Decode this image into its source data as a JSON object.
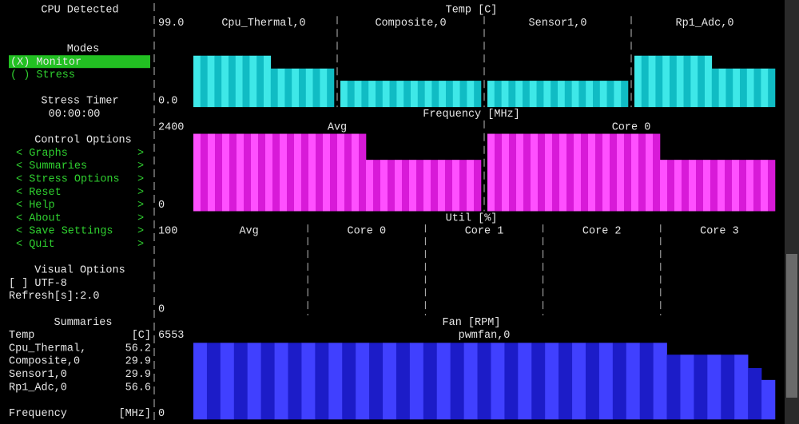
{
  "sidebar": {
    "cpu": "CPU Detected",
    "modes_title": "Modes",
    "modes": [
      "(X) Monitor",
      "( ) Stress"
    ],
    "timer_title": "Stress Timer",
    "timer": "00:00:00",
    "control_title": "Control Options",
    "controls": [
      {
        "text": "< Graphs",
        "arrow": ">"
      },
      {
        "text": "< Summaries",
        "arrow": ">"
      },
      {
        "text": "< Stress Options",
        "arrow": ">"
      },
      {
        "text": "< Reset",
        "arrow": ">"
      },
      {
        "text": "< Help",
        "arrow": ">"
      },
      {
        "text": "< About",
        "arrow": ">"
      },
      {
        "text": "< Save Settings",
        "arrow": ">"
      },
      {
        "text": "< Quit",
        "arrow": ">"
      }
    ],
    "visual_title": "Visual Options",
    "visual": [
      "[ ] UTF-8",
      "Refresh[s]:2.0"
    ],
    "summaries_title": "Summaries",
    "summaries": [
      {
        "name": "Temp",
        "value": "[C]"
      },
      {
        "name": "Cpu_Thermal,",
        "value": "56.2"
      },
      {
        "name": "Composite,0",
        "value": "29.9"
      },
      {
        "name": "Sensor1,0",
        "value": "29.9"
      },
      {
        "name": "Rp1_Adc,0",
        "value": "56.6"
      }
    ],
    "footer": {
      "name": "Frequency",
      "value": "[MHz]"
    }
  },
  "graphs": [
    {
      "title": "Temp [C]",
      "ylim": [
        0,
        99
      ],
      "yticks": [
        {
          "value": 99,
          "label": "99.0"
        },
        {
          "value": 0,
          "label": "0.0"
        }
      ],
      "colors": [
        "#3ee8e8",
        "#10bcc4"
      ],
      "panels": [
        {
          "name": "Cpu_Thermal,0",
          "values": [
            56,
            56,
            56,
            56,
            56,
            56,
            56,
            56,
            56,
            56,
            56,
            42,
            42,
            42,
            42,
            42,
            42,
            42,
            42,
            42
          ]
        },
        {
          "name": "Composite,0",
          "values": [
            28.7,
            28.7,
            28.7,
            28.7,
            28.7,
            28.7,
            28.7,
            28.7,
            28.7,
            28.7,
            28.7,
            28.7,
            28.7,
            28.7,
            28.7,
            28.7,
            28.7,
            28.7,
            28.7,
            28.7
          ]
        },
        {
          "name": "Sensor1,0",
          "values": [
            28.7,
            28.7,
            28.7,
            28.7,
            28.7,
            28.7,
            28.7,
            28.7,
            28.7,
            28.7,
            28.7,
            28.7,
            28.7,
            28.7,
            28.7,
            28.7,
            28.7,
            28.7,
            28.7,
            28.7
          ]
        },
        {
          "name": "Rp1_Adc,0",
          "values": [
            56,
            56,
            56,
            56,
            56,
            56,
            56,
            56,
            56,
            56,
            56,
            42,
            42,
            42,
            42,
            42,
            42,
            42,
            42,
            42
          ]
        }
      ]
    },
    {
      "title": "Frequency [MHz]",
      "ylim": [
        0,
        2400
      ],
      "yticks": [
        2400,
        0
      ],
      "colors": [
        "#ff50ff",
        "#d81ad8"
      ],
      "panels": [
        {
          "name": "Avg",
          "values": [
            2045,
            2045,
            2045,
            2045,
            2045,
            2045,
            2045,
            2045,
            2045,
            2045,
            2045,
            2045,
            2045,
            2045,
            2045,
            2045,
            2045,
            2045,
            2045,
            2045,
            2045,
            2045,
            2045,
            2045,
            1357,
            1357,
            1357,
            1357,
            1357,
            1357,
            1357,
            1357,
            1357,
            1357,
            1357,
            1357,
            1357,
            1357,
            1357,
            1357
          ]
        },
        {
          "name": "Core 0",
          "values": [
            2045,
            2045,
            2045,
            2045,
            2045,
            2045,
            2045,
            2045,
            2045,
            2045,
            2045,
            2045,
            2045,
            2045,
            2045,
            2045,
            2045,
            2045,
            2045,
            2045,
            2045,
            2045,
            2045,
            2045,
            1357,
            1357,
            1357,
            1357,
            1357,
            1357,
            1357,
            1357,
            1357,
            1357,
            1357,
            1357,
            1357,
            1357,
            1357,
            1357
          ]
        }
      ]
    },
    {
      "title": "Util [%]",
      "ylim": [
        0,
        100
      ],
      "yticks": [
        100,
        0
      ],
      "colors": [
        "#ffffff",
        "#cccccc"
      ],
      "panels": [
        {
          "name": "Avg",
          "values": []
        },
        {
          "name": "Core 0",
          "values": []
        },
        {
          "name": "Core 1",
          "values": []
        },
        {
          "name": "Core 2",
          "values": []
        },
        {
          "name": "Core 3",
          "values": []
        }
      ]
    },
    {
      "title": "Fan [RPM]",
      "ylim": [
        0,
        6553
      ],
      "yticks": [
        6553,
        0
      ],
      "colors": [
        "#4040ff",
        "#1c1cc8"
      ],
      "panels": [
        {
          "name": "pwmfan,0",
          "values": [
            5527,
            5527,
            5527,
            5527,
            5527,
            5527,
            5527,
            5527,
            5527,
            5527,
            5527,
            5527,
            5527,
            5527,
            5527,
            5527,
            5527,
            5527,
            5527,
            5527,
            5527,
            5527,
            5527,
            5527,
            5527,
            5527,
            5527,
            5527,
            5527,
            5527,
            5527,
            5527,
            5527,
            5527,
            5527,
            4672,
            4672,
            4672,
            4672,
            4672,
            4672,
            3704,
            2849
          ]
        }
      ]
    }
  ]
}
